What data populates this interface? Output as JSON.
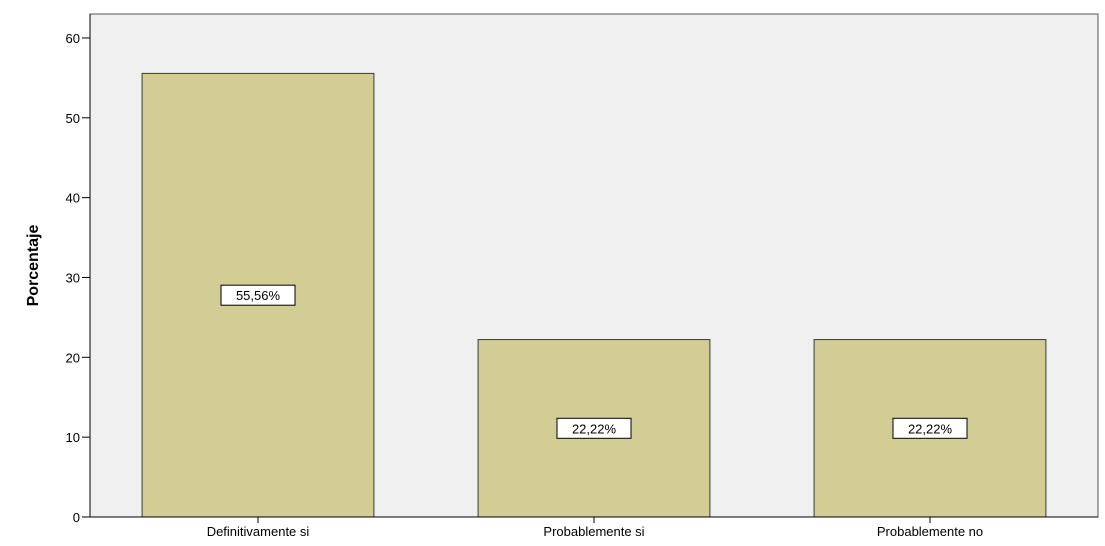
{
  "chart_data": {
    "type": "bar",
    "title": "",
    "xlabel": "",
    "ylabel": "Porcentaje",
    "categories": [
      "Definitivamente si",
      "Probablemente si",
      "Probablemente no"
    ],
    "values": [
      55.56,
      22.22,
      22.22
    ],
    "data_labels": [
      "55,56%",
      "22,22%",
      "22,22%"
    ],
    "y_ticks": [
      0,
      10,
      20,
      30,
      40,
      50,
      60
    ],
    "ylim": [
      0,
      63
    ],
    "grid": false,
    "legend": "none",
    "colors": {
      "bar_fill": "#d2cc95",
      "bar_stroke": "#3a3a3a",
      "plot_background": "#f0f0f0",
      "axis": "#000000"
    }
  }
}
